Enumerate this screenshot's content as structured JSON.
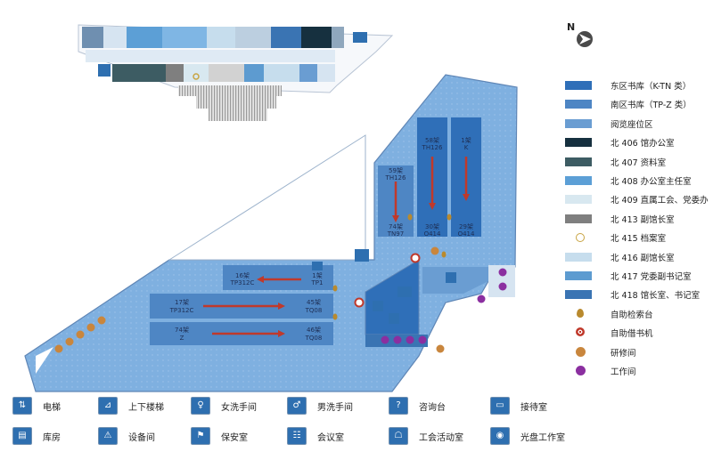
{
  "compass": {
    "label": "N",
    "icon": "north-arrow-icon"
  },
  "legend": [
    {
      "label": "东区书库（K-TN 类）",
      "color": "#2f6fb8",
      "shape": "rect"
    },
    {
      "label": "南区书库（TP-Z 类）",
      "color": "#4e86c4",
      "shape": "rect"
    },
    {
      "label": "阅览座位区",
      "color": "#6a9dd2",
      "shape": "rect"
    },
    {
      "label": "北 406 馆办公室",
      "color": "#16303f",
      "shape": "rect"
    },
    {
      "label": "北 407 资料室",
      "color": "#3d5c63",
      "shape": "rect"
    },
    {
      "label": "北 408 办公室主任室",
      "color": "#5c9fd6",
      "shape": "rect"
    },
    {
      "label": "北 409 直属工会、党委办",
      "color": "#d8e8f0",
      "shape": "rect"
    },
    {
      "label": "北 413 副馆长室",
      "color": "#7f7f7f",
      "shape": "rect"
    },
    {
      "label": "北 415 档案室",
      "color": "#c8a442",
      "shape": "circle-o"
    },
    {
      "label": "北 416 副馆长室",
      "color": "#c6dded",
      "shape": "rect"
    },
    {
      "label": "北 417 党委副书记室",
      "color": "#5d9bd0",
      "shape": "rect"
    },
    {
      "label": "北 418 馆长室、书记室",
      "color": "#3a74b3",
      "shape": "rect"
    },
    {
      "label": "自助检索台",
      "color": "#b98a2e",
      "shape": "drop"
    },
    {
      "label": "自助借书机",
      "color": "#c0392b",
      "shape": "target"
    },
    {
      "label": "研修间",
      "color": "#c9863d",
      "shape": "dot"
    },
    {
      "label": "工作间",
      "color": "#8b2fa0",
      "shape": "dot"
    }
  ],
  "facilities": [
    {
      "label": "电梯",
      "icon": "elevator-icon",
      "glyph": "⇅"
    },
    {
      "label": "上下楼梯",
      "icon": "stairs-icon",
      "glyph": "⊿"
    },
    {
      "label": "女洗手间",
      "icon": "womens-restroom-icon",
      "glyph": "♀"
    },
    {
      "label": "男洗手间",
      "icon": "mens-restroom-icon",
      "glyph": "♂"
    },
    {
      "label": "咨询台",
      "icon": "info-desk-icon",
      "glyph": "?"
    },
    {
      "label": "接待室",
      "icon": "reception-room-icon",
      "glyph": "▭"
    },
    {
      "label": "库房",
      "icon": "storeroom-icon",
      "glyph": "▤"
    },
    {
      "label": "设备间",
      "icon": "equipment-room-icon",
      "glyph": "⚠"
    },
    {
      "label": "保安室",
      "icon": "security-room-icon",
      "glyph": "⚑"
    },
    {
      "label": "会议室",
      "icon": "meeting-room-icon",
      "glyph": "☷"
    },
    {
      "label": "工会活动室",
      "icon": "union-activity-room-icon",
      "glyph": "☖"
    },
    {
      "label": "光盘工作室",
      "icon": "cd-workroom-icon",
      "glyph": "◉"
    }
  ],
  "shelves": {
    "east_a_top": "59架",
    "east_a_top_code": "TH126",
    "east_b_top": "58架",
    "east_b_top_code": "TH126",
    "east_c_top": "1架",
    "east_c_top_code": "K",
    "east_a_bottom": "74架",
    "east_a_bottom_code": "TN97",
    "east_b_bottom": "30架",
    "east_b_bottom_code": "O414",
    "east_c_bottom": "29架",
    "east_c_bottom_code": "O414",
    "south_r1_left": "16架",
    "south_r1_left_code": "TP312C",
    "south_r1_right": "1架",
    "south_r1_right_code": "TP1",
    "south_r2_left": "17架",
    "south_r2_left_code": "TP312C",
    "south_r2_right": "45架",
    "south_r2_right_code": "TQ08",
    "south_r3_left": "74架",
    "south_r3_left_code": "Z",
    "south_r3_right": "46架",
    "south_r3_right_code": "TQ08"
  }
}
